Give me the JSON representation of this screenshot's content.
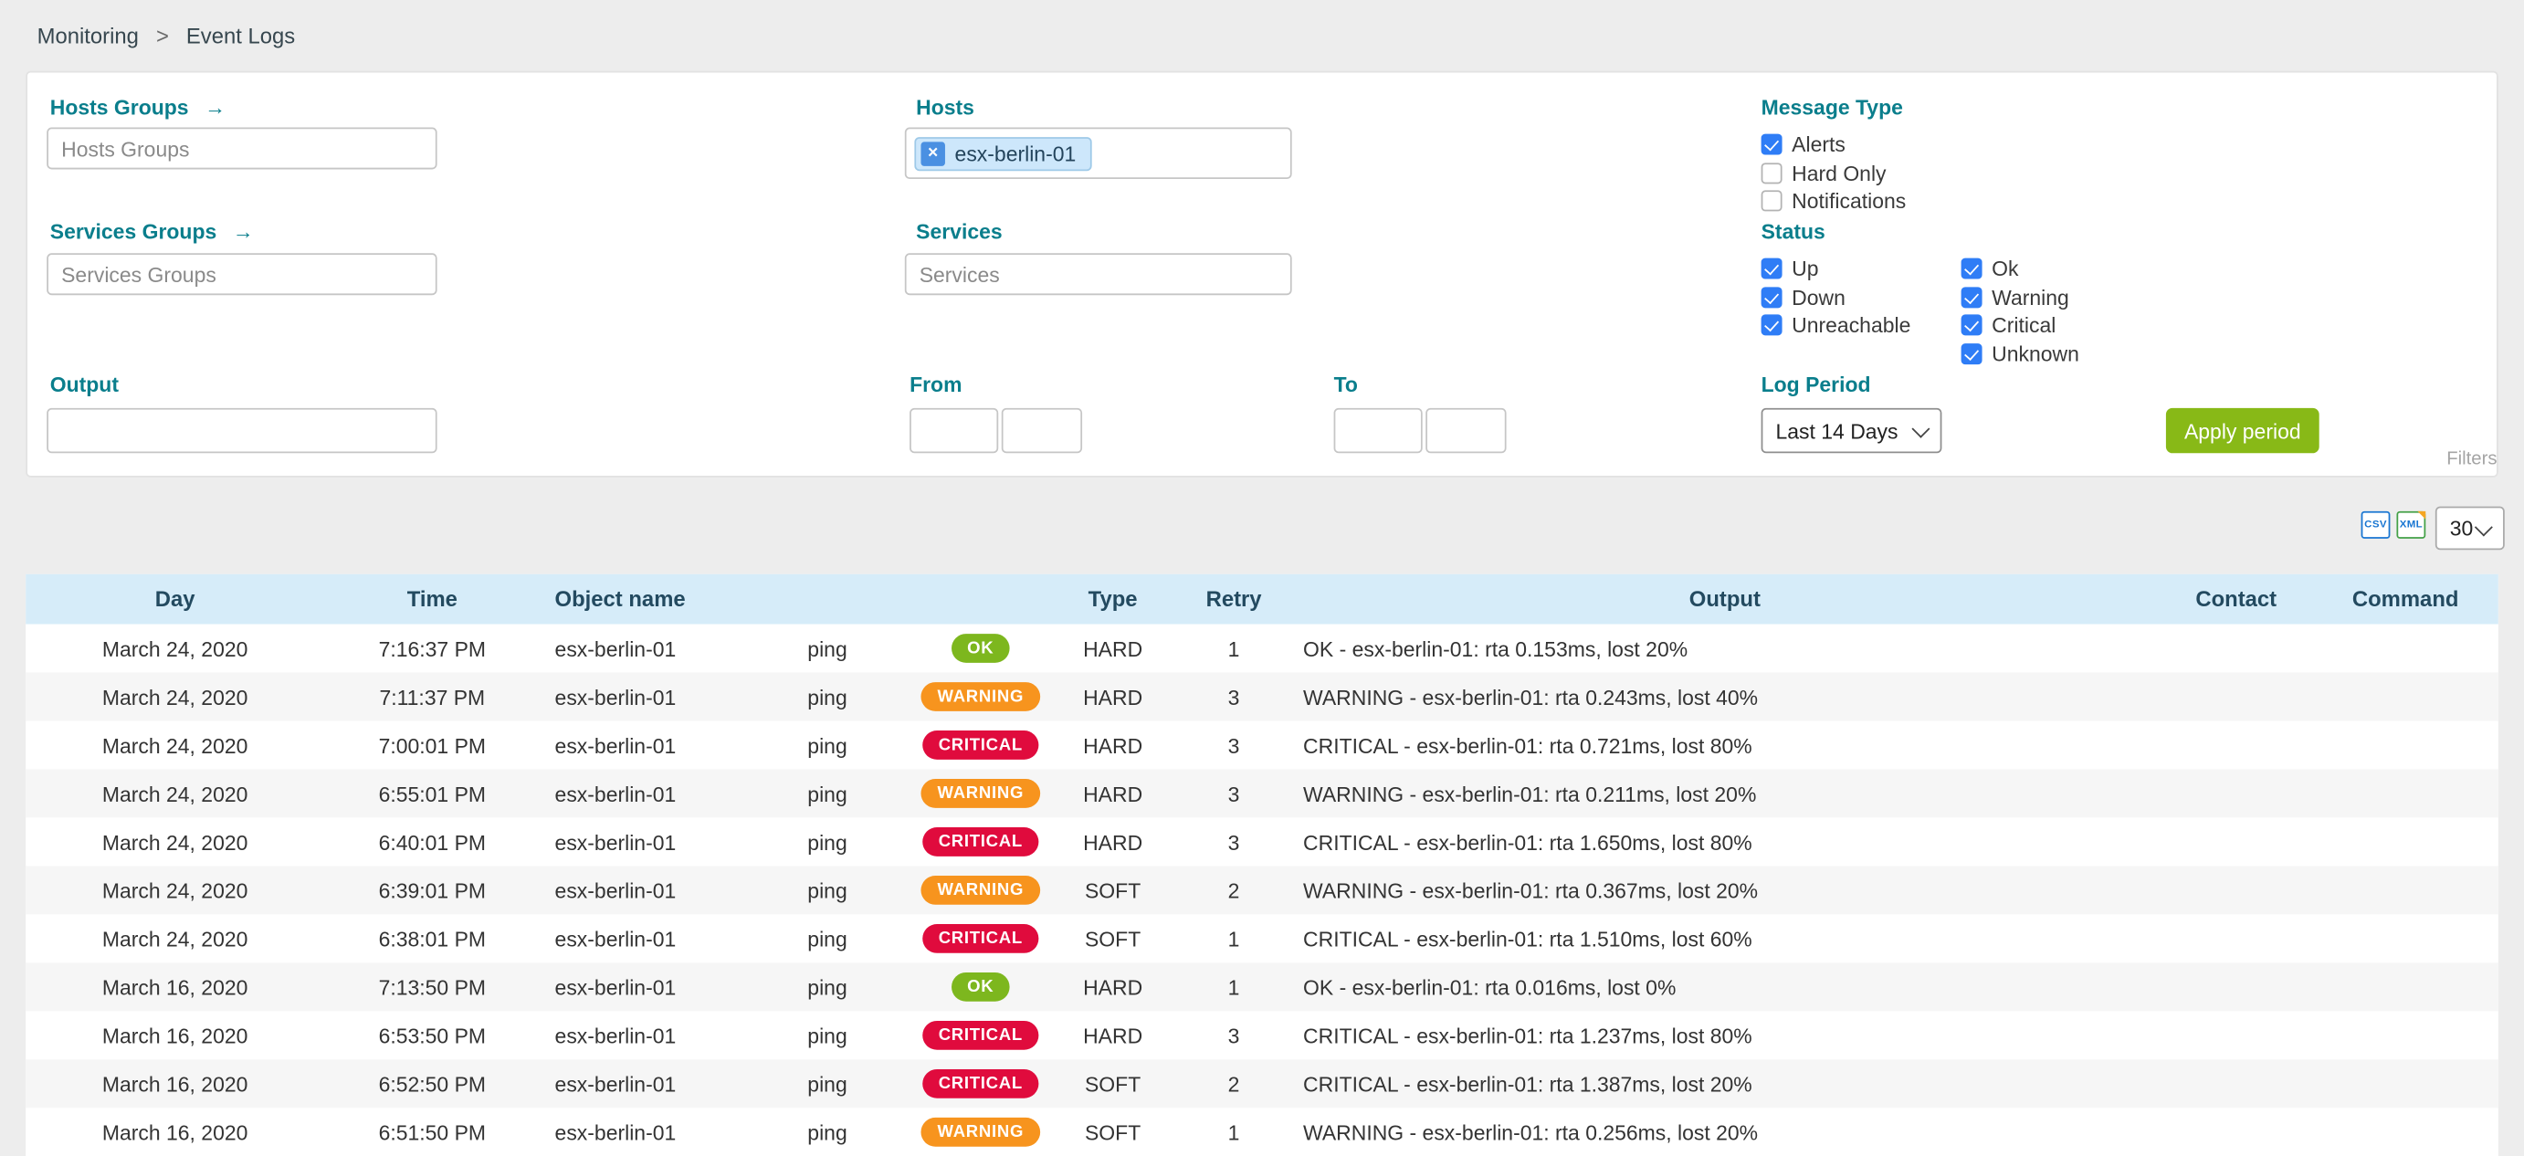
{
  "breadcrumb": {
    "items": [
      "Monitoring",
      "Event Logs"
    ],
    "separator": ">"
  },
  "filter_panel": {
    "collapse_label": "Filters",
    "hosts_groups_label": "Hosts Groups",
    "hosts_groups_placeholder": "Hosts Groups",
    "services_groups_label": "Services Groups",
    "services_groups_placeholder": "Services Groups",
    "output_label": "Output",
    "output_value": "",
    "hosts_label": "Hosts",
    "hosts_selected": [
      {
        "text": "esx-berlin-01",
        "remove_symbol": "×"
      }
    ],
    "services_label": "Services",
    "services_placeholder": "Services",
    "from_label": "From",
    "from_date": "",
    "from_time": "",
    "to_label": "To",
    "to_date": "",
    "to_time": "",
    "message_type_label": "Message Type",
    "message_type_options": [
      {
        "label": "Alerts",
        "checked": true
      },
      {
        "label": "Hard Only",
        "checked": false
      },
      {
        "label": "Notifications",
        "checked": false
      }
    ],
    "status_label": "Status",
    "status_options_col1": [
      {
        "label": "Up",
        "checked": true
      },
      {
        "label": "Down",
        "checked": true
      },
      {
        "label": "Unreachable",
        "checked": true
      }
    ],
    "status_options_col2": [
      {
        "label": "Ok",
        "checked": true
      },
      {
        "label": "Warning",
        "checked": true
      },
      {
        "label": "Critical",
        "checked": true
      },
      {
        "label": "Unknown",
        "checked": true
      }
    ],
    "log_period_label": "Log Period",
    "log_period_value": "Last 14 Days",
    "apply_button_label": "Apply period"
  },
  "toolbar": {
    "csv_label": "CSV",
    "xml_label": "XML",
    "page_size_value": "30"
  },
  "table": {
    "headers": {
      "day": "Day",
      "time": "Time",
      "object": "Object name",
      "service": "",
      "status": "",
      "type": "Type",
      "retry": "Retry",
      "output": "Output",
      "contact": "Contact",
      "command": "Command"
    },
    "rows": [
      {
        "day": "March 24, 2020",
        "time": "7:16:37 PM",
        "object": "esx-berlin-01",
        "service": "ping",
        "status": "OK",
        "type": "HARD",
        "retry": "1",
        "output": "OK - esx-berlin-01: rta 0.153ms, lost 20%",
        "contact": "",
        "command": ""
      },
      {
        "day": "March 24, 2020",
        "time": "7:11:37 PM",
        "object": "esx-berlin-01",
        "service": "ping",
        "status": "WARNING",
        "type": "HARD",
        "retry": "3",
        "output": "WARNING - esx-berlin-01: rta 0.243ms, lost 40%",
        "contact": "",
        "command": ""
      },
      {
        "day": "March 24, 2020",
        "time": "7:00:01 PM",
        "object": "esx-berlin-01",
        "service": "ping",
        "status": "CRITICAL",
        "type": "HARD",
        "retry": "3",
        "output": "CRITICAL - esx-berlin-01: rta 0.721ms, lost 80%",
        "contact": "",
        "command": ""
      },
      {
        "day": "March 24, 2020",
        "time": "6:55:01 PM",
        "object": "esx-berlin-01",
        "service": "ping",
        "status": "WARNING",
        "type": "HARD",
        "retry": "3",
        "output": "WARNING - esx-berlin-01: rta 0.211ms, lost 20%",
        "contact": "",
        "command": ""
      },
      {
        "day": "March 24, 2020",
        "time": "6:40:01 PM",
        "object": "esx-berlin-01",
        "service": "ping",
        "status": "CRITICAL",
        "type": "HARD",
        "retry": "3",
        "output": "CRITICAL - esx-berlin-01: rta 1.650ms, lost 80%",
        "contact": "",
        "command": ""
      },
      {
        "day": "March 24, 2020",
        "time": "6:39:01 PM",
        "object": "esx-berlin-01",
        "service": "ping",
        "status": "WARNING",
        "type": "SOFT",
        "retry": "2",
        "output": "WARNING - esx-berlin-01: rta 0.367ms, lost 20%",
        "contact": "",
        "command": ""
      },
      {
        "day": "March 24, 2020",
        "time": "6:38:01 PM",
        "object": "esx-berlin-01",
        "service": "ping",
        "status": "CRITICAL",
        "type": "SOFT",
        "retry": "1",
        "output": "CRITICAL - esx-berlin-01: rta 1.510ms, lost 60%",
        "contact": "",
        "command": ""
      },
      {
        "day": "March 16, 2020",
        "time": "7:13:50 PM",
        "object": "esx-berlin-01",
        "service": "ping",
        "status": "OK",
        "type": "HARD",
        "retry": "1",
        "output": "OK - esx-berlin-01: rta 0.016ms, lost 0%",
        "contact": "",
        "command": ""
      },
      {
        "day": "March 16, 2020",
        "time": "6:53:50 PM",
        "object": "esx-berlin-01",
        "service": "ping",
        "status": "CRITICAL",
        "type": "HARD",
        "retry": "3",
        "output": "CRITICAL - esx-berlin-01: rta 1.237ms, lost 80%",
        "contact": "",
        "command": ""
      },
      {
        "day": "March 16, 2020",
        "time": "6:52:50 PM",
        "object": "esx-berlin-01",
        "service": "ping",
        "status": "CRITICAL",
        "type": "SOFT",
        "retry": "2",
        "output": "CRITICAL - esx-berlin-01: rta 1.387ms, lost 20%",
        "contact": "",
        "command": ""
      },
      {
        "day": "March 16, 2020",
        "time": "6:51:50 PM",
        "object": "esx-berlin-01",
        "service": "ping",
        "status": "WARNING",
        "type": "SOFT",
        "retry": "1",
        "output": "WARNING - esx-berlin-01: rta 0.256ms, lost 20%",
        "contact": "",
        "command": ""
      }
    ]
  },
  "colors": {
    "label_teal": "#0a7e8c",
    "apply_green": "#88b917",
    "badge_ok": "#7db71e",
    "badge_warning": "#f7941e",
    "badge_critical": "#e00b3d",
    "table_header_bg": "#d6ecf9",
    "checkbox_blue": "#2f7df6",
    "chip_bg": "#cde7fb"
  }
}
